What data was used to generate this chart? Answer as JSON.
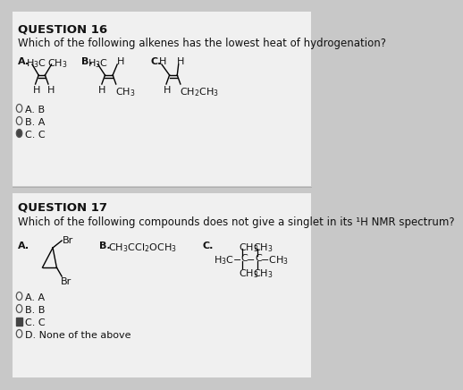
{
  "bg_color": "#c8c8c8",
  "paper_color": "#f0f0f0",
  "text_color": "#111111",
  "title1": "QUESTION 16",
  "q1_text": "Which of the following alkenes has the lowest heat of hydrogenation?",
  "title2": "QUESTION 17",
  "q2_text": "Which of the following compounds does not give a singlet in its ¹H NMR spectrum?",
  "q1_answers": [
    "A. B",
    "B. A",
    "C. C"
  ],
  "q1_selected": 2,
  "q2_answers": [
    "A. A",
    "B. B",
    "C. C",
    "D. None of the above"
  ],
  "q2_selected": 2,
  "fs_title": 9.5,
  "fs_body": 8.5,
  "fs_struct": 8.0,
  "fs_radio": 8.0
}
